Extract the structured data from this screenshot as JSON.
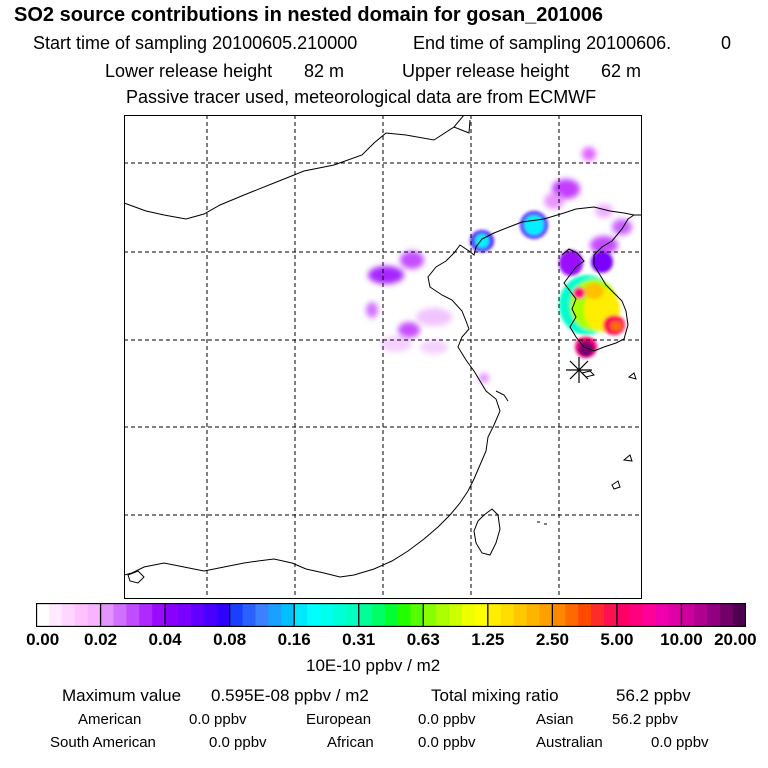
{
  "header": {
    "title": "SO2 source contributions in nested domain for gosan_201006",
    "start_label": "Start time of sampling 20100605.210000",
    "end_label": "End time of sampling 20100606.",
    "end_value": "0",
    "lower_release": "Lower release height",
    "lower_value": "82 m",
    "upper_release": "Upper release height",
    "upper_value": "62 m",
    "tracer_note": "Passive tracer used, meteorological data are from ECMWF"
  },
  "colorbar": {
    "unit": "10E-10 ppbv / m2",
    "tick_labels": [
      "0.00",
      "0.02",
      "0.04",
      "0.08",
      "0.16",
      "0.31",
      "0.63",
      "1.25",
      "2.50",
      "5.00",
      "10.00",
      "20.00"
    ],
    "colors": [
      [
        "#ffffff",
        "#ffeaff",
        "#ffd6ff",
        "#ffc2ff",
        "#f8b4ff"
      ],
      [
        "#e394ff",
        "#d070ff",
        "#c04dff",
        "#ae2aff",
        "#9a0aff"
      ],
      [
        "#8a00ff",
        "#7a00ff",
        "#6200ff",
        "#4a00ff",
        "#3000ff"
      ],
      [
        "#1a40ff",
        "#2a60ff",
        "#3a80ff",
        "#1aa0ff",
        "#00c0ff"
      ],
      [
        "#00e8ff",
        "#00ffff",
        "#00ffee",
        "#00ffd8",
        "#00ffc0"
      ],
      [
        "#00ff99",
        "#00ff66",
        "#00ff33",
        "#22ff00",
        "#55ff00"
      ],
      [
        "#88ff00",
        "#aaff00",
        "#ccff00",
        "#eeff00",
        "#ffff00"
      ],
      [
        "#ffee00",
        "#ffdd00",
        "#ffc800",
        "#ffb400",
        "#ffa000"
      ],
      [
        "#ff8800",
        "#ff6a00",
        "#ff4800",
        "#ff2a2a",
        "#ff1050"
      ],
      [
        "#ff0066",
        "#ff0080",
        "#ff0099",
        "#f000aa",
        "#e000a8"
      ],
      [
        "#cc009e",
        "#b00090",
        "#900080",
        "#700068",
        "#500050"
      ]
    ]
  },
  "footer": {
    "max_label": "Maximum value",
    "max_value": "0.595E-08 ppbv / m2",
    "total_label": "Total mixing ratio",
    "total_value": "56.2 ppbv",
    "regions": [
      {
        "name": "American",
        "value": "0.0 ppbv"
      },
      {
        "name": "European",
        "value": "0.0 ppbv"
      },
      {
        "name": "Asian",
        "value": "56.2 ppbv"
      },
      {
        "name": "South American",
        "value": "0.0 ppbv"
      },
      {
        "name": "African",
        "value": "0.0 ppbv"
      },
      {
        "name": "Australian",
        "value": "0.0 ppbv"
      }
    ]
  },
  "map": {
    "receptor_icon": "asterisk-icon",
    "colors": {
      "frame": "#000000",
      "grid": "#000000",
      "coast": "#000000"
    }
  }
}
